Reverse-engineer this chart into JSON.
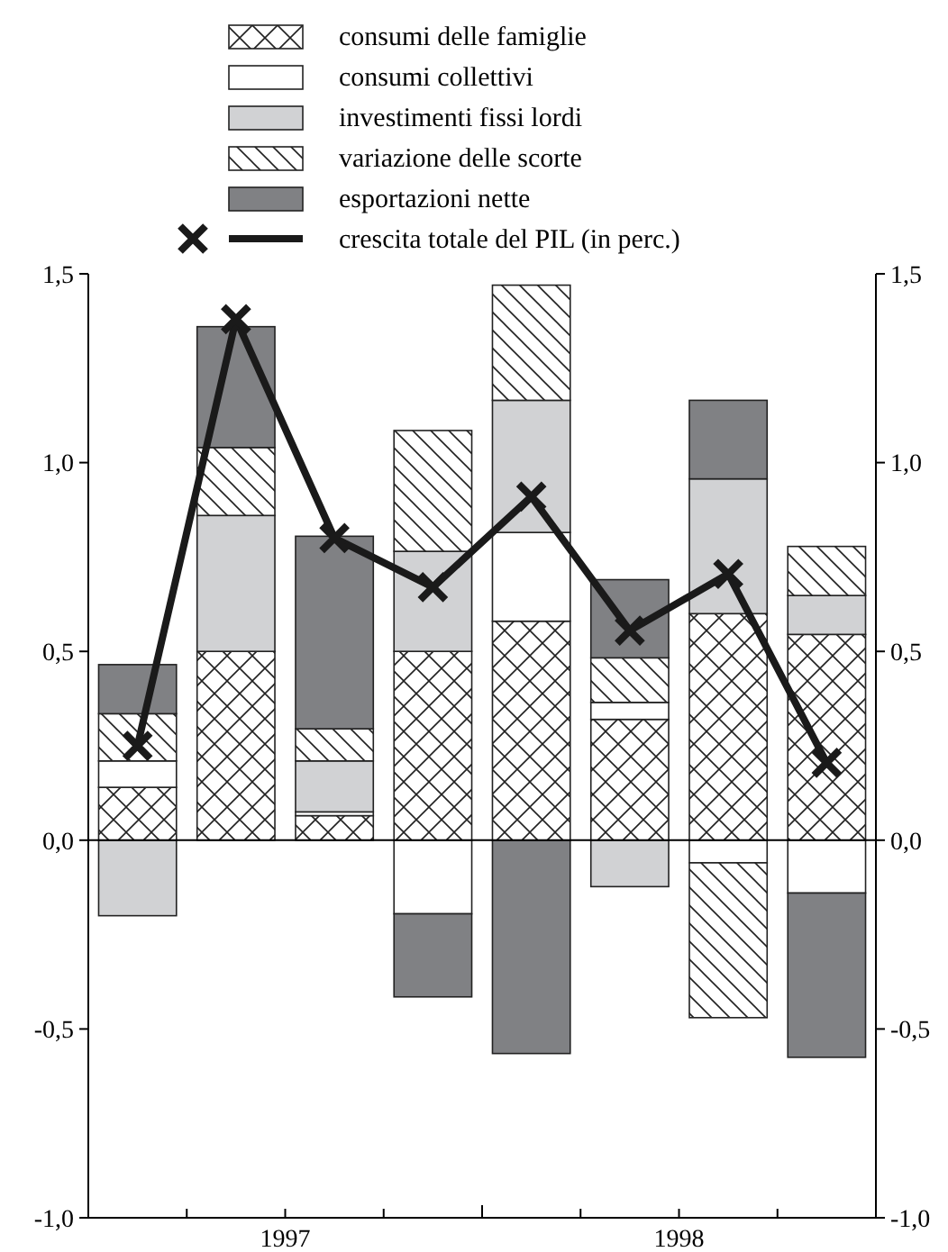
{
  "chart_data": {
    "type": "bar",
    "stacked": true,
    "categories": [
      null,
      null,
      null,
      null,
      null,
      null,
      null,
      null
    ],
    "annotations": [
      "1997",
      "1998"
    ],
    "series": [
      {
        "name": "consumi delle famiglie",
        "color": "#222222",
        "values": [
          0.14,
          0.5,
          0.065,
          0.5,
          0.58,
          0.32,
          0.6,
          0.545
        ]
      },
      {
        "name": "consumi collettivi",
        "color": "#ffffff",
        "values": [
          0.07,
          0,
          0.01,
          -0.195,
          0.235,
          0.045,
          -0.06,
          -0.14
        ]
      },
      {
        "name": "investimenti fissi lordi",
        "color": "#d1d2d4",
        "values": [
          -0.2,
          0.36,
          0.135,
          0.265,
          0.35,
          -0.123,
          0.357,
          0.103
        ]
      },
      {
        "name": "variazione delle scorte",
        "color": "#222222",
        "values": [
          0.125,
          0.18,
          0.085,
          0.32,
          0.305,
          0.118,
          -0.41,
          0.13
        ]
      },
      {
        "name": "esportazioni nette",
        "color": "#808184",
        "values": [
          0.13,
          0.32,
          0.51,
          -0.22,
          -0.565,
          0.207,
          0.208,
          -0.435
        ]
      },
      {
        "name": "crescita totale del PIL (in perc.)",
        "type": "line",
        "color": "#1a1a1a",
        "marker": "cross",
        "values": [
          0.25,
          1.38,
          0.8,
          0.67,
          0.91,
          0.555,
          0.705,
          0.205
        ]
      }
    ],
    "ylim": [
      -1,
      1.5
    ],
    "yticks": [
      {
        "value": -1,
        "label": "-1,0"
      },
      {
        "value": -0.5,
        "label": "-0,5"
      },
      {
        "value": 0,
        "label": "0,0"
      },
      {
        "value": 0.5,
        "label": "0,5"
      },
      {
        "value": 1,
        "label": "1,0"
      },
      {
        "value": 1.5,
        "label": "1,5"
      }
    ],
    "y2lim": [
      -1,
      1.5
    ],
    "y2ticks": [
      {
        "value": -1,
        "label": "-1,0"
      },
      {
        "value": -0.5,
        "label": "-0,5"
      },
      {
        "value": 0,
        "label": "0,0"
      },
      {
        "value": 0.5,
        "label": "0,5"
      },
      {
        "value": 1,
        "label": "1,0"
      },
      {
        "value": 1.5,
        "label": "1,5"
      }
    ],
    "ref_lines": [
      {
        "axis": "y",
        "value": 0,
        "color": "#000000"
      }
    ],
    "legend": "top",
    "grid": false
  }
}
